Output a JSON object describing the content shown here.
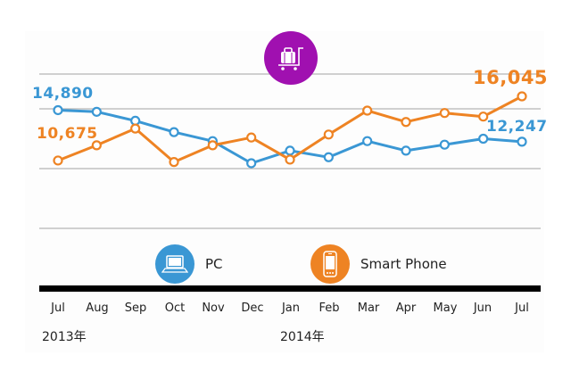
{
  "chart_data": {
    "type": "line",
    "title": "",
    "xlabel": "",
    "ylabel": "",
    "categories": [
      "Jul",
      "Aug",
      "Sep",
      "Oct",
      "Nov",
      "Dec",
      "Jan",
      "Feb",
      "Mar",
      "Apr",
      "May",
      "Jun",
      "Jul"
    ],
    "year_labels": [
      {
        "label": "2013年",
        "start_index": 0
      },
      {
        "label": "2014年",
        "start_index": 6
      }
    ],
    "series": [
      {
        "name": "PC",
        "color": "#3a97d4",
        "values": [
          14890,
          14750,
          14000,
          13050,
          12300,
          10450,
          11500,
          10950,
          12300,
          11500,
          12000,
          12500,
          12247
        ]
      },
      {
        "name": "Smart Phone",
        "color": "#ee8323",
        "values": [
          10675,
          11950,
          13350,
          10550,
          11950,
          12600,
          10750,
          12850,
          14850,
          13900,
          14650,
          14350,
          16045
        ]
      }
    ],
    "annotations": [
      {
        "text": "14,890",
        "series": "PC",
        "index": 0
      },
      {
        "text": "10,675",
        "series": "Smart Phone",
        "index": 0
      },
      {
        "text": "16,045",
        "series": "Smart Phone",
        "index": 12
      },
      {
        "text": "12,247",
        "series": "PC",
        "index": 12
      }
    ],
    "ylim": [
      5000,
      17850
    ],
    "gridlines": [
      17850,
      15000,
      10000,
      5000
    ],
    "grid": true,
    "legend_position": "bottom"
  },
  "header": {
    "icon": "luggage-cart-icon",
    "icon_color": "#a010b0"
  },
  "legend": [
    {
      "label": "PC",
      "icon": "laptop-icon",
      "color": "#3a97d4"
    },
    {
      "label": "Smart Phone",
      "icon": "smartphone-icon",
      "color": "#ee8323"
    }
  ],
  "labels": {
    "pc_start": "14,890",
    "sp_start": "10,675",
    "sp_end": "16,045",
    "pc_end": "12,247"
  },
  "axis": {
    "months": [
      "Jul",
      "Aug",
      "Sep",
      "Oct",
      "Nov",
      "Dec",
      "Jan",
      "Feb",
      "Mar",
      "Apr",
      "May",
      "Jun",
      "Jul"
    ],
    "year_2013": "2013年",
    "year_2014": "2014年"
  }
}
